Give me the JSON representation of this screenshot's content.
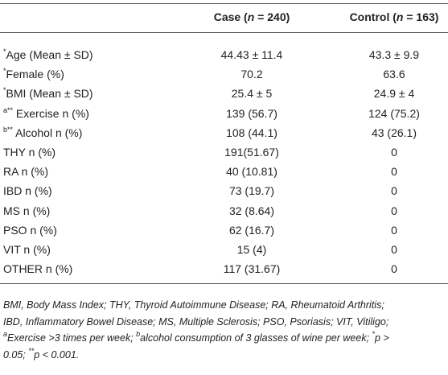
{
  "table": {
    "header": {
      "case": [
        {
          "text": "Case ("
        },
        {
          "italic": "n"
        },
        {
          "text": " = 240)"
        }
      ],
      "control": [
        {
          "text": "Control ("
        },
        {
          "italic": "n"
        },
        {
          "text": " = 163)"
        }
      ]
    },
    "rows": [
      {
        "label": [
          {
            "sup": "*"
          },
          {
            "text": "Age (Mean ± SD)"
          }
        ],
        "case": "44.43 ± 11.4",
        "control": "43.3 ± 9.9"
      },
      {
        "label": [
          {
            "sup": "*"
          },
          {
            "text": "Female (%)"
          }
        ],
        "case": "70.2",
        "control": "63.6"
      },
      {
        "label": [
          {
            "sup": "*"
          },
          {
            "text": "BMI (Mean ± SD)"
          }
        ],
        "case": "25.4 ± 5",
        "control": "24.9 ± 4"
      },
      {
        "label": [
          {
            "sup": "a**"
          },
          {
            "text": " Exercise n (%)"
          }
        ],
        "case": "139 (56.7)",
        "control": "124 (75.2)"
      },
      {
        "label": [
          {
            "sup": "b**"
          },
          {
            "text": " Alcohol n (%)"
          }
        ],
        "case": "108 (44.1)",
        "control": "43 (26.1)"
      },
      {
        "label": [
          {
            "text": "THY n (%)"
          }
        ],
        "case": "191(51.67)",
        "control": "0"
      },
      {
        "label": [
          {
            "text": "RA n (%)"
          }
        ],
        "case": "40 (10.81)",
        "control": "0"
      },
      {
        "label": [
          {
            "text": "IBD n (%)"
          }
        ],
        "case": "73 (19.7)",
        "control": "0"
      },
      {
        "label": [
          {
            "text": "MS n (%)"
          }
        ],
        "case": "32 (8.64)",
        "control": "0"
      },
      {
        "label": [
          {
            "text": "PSO n (%)"
          }
        ],
        "case": "62 (16.7)",
        "control": "0"
      },
      {
        "label": [
          {
            "text": "VIT n (%)"
          }
        ],
        "case": "15 (4)",
        "control": "0"
      },
      {
        "label": [
          {
            "text": "OTHER n (%)"
          }
        ],
        "case": "117 (31.67)",
        "control": "0"
      }
    ],
    "footnote": [
      [
        {
          "text": "BMI, Body Mass Index; THY, Thyroid Autoimmune Disease; RA, Rheumatoid Arthritis;"
        }
      ],
      [
        {
          "text": "IBD, Inflammatory Bowel Disease; MS, Multiple Sclerosis; PSO, Psoriasis; VIT, Vitiligo;"
        }
      ],
      [
        {
          "sup": "a"
        },
        {
          "text": "Exercise >3 times per week; "
        },
        {
          "sup": "b"
        },
        {
          "text": "alcohol consumption of 3 glasses of wine per week; "
        },
        {
          "sup": "*"
        },
        {
          "text": "p >"
        }
      ],
      [
        {
          "text": "0.05; "
        },
        {
          "sup": "**"
        },
        {
          "text": "p < 0.001."
        }
      ]
    ]
  }
}
